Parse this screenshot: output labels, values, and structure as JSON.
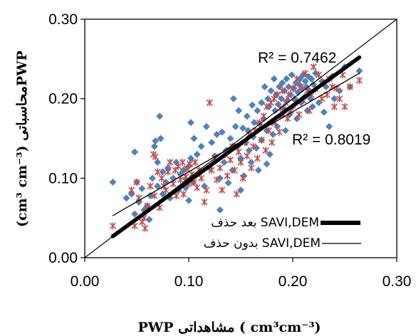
{
  "chart_data": {
    "type": "scatter",
    "xlim": [
      0.0,
      0.3
    ],
    "ylim": [
      0.0,
      0.3
    ],
    "x_ticks": [
      "0.00",
      "0.10",
      "0.20",
      "0.30"
    ],
    "y_ticks": [
      "0.00",
      "0.10",
      "0.20",
      "0.30"
    ],
    "xlabel": "PWP مشاهداتی ( cm³cm⁻³)",
    "ylabel": "(cm³ cm⁻³)  محاسباتیPWP",
    "grid": false,
    "legend_position": "bottom-right",
    "one_to_one_line": true,
    "annotations": [
      {
        "text": "R² = 0.7462",
        "x": 0.212,
        "y": 0.252
      },
      {
        "text": "R² = 0.8019",
        "x": 0.208,
        "y": 0.151
      }
    ],
    "series": [
      {
        "marker": "diamond",
        "color": "#4f81bd",
        "points": [
          [
            0.027,
            0.095
          ],
          [
            0.04,
            0.075
          ],
          [
            0.045,
            0.08
          ],
          [
            0.048,
            0.133
          ],
          [
            0.048,
            0.055
          ],
          [
            0.05,
            0.095
          ],
          [
            0.052,
            0.07
          ],
          [
            0.055,
            0.087
          ],
          [
            0.057,
            0.06
          ],
          [
            0.06,
            0.065
          ],
          [
            0.062,
            0.048
          ],
          [
            0.063,
            0.078
          ],
          [
            0.065,
            0.1
          ],
          [
            0.067,
            0.14
          ],
          [
            0.068,
            0.147
          ],
          [
            0.07,
            0.12
          ],
          [
            0.07,
            0.09
          ],
          [
            0.072,
            0.178
          ],
          [
            0.073,
            0.15
          ],
          [
            0.075,
            0.108
          ],
          [
            0.075,
            0.08
          ],
          [
            0.078,
            0.095
          ],
          [
            0.08,
            0.113
          ],
          [
            0.082,
            0.075
          ],
          [
            0.085,
            0.1
          ],
          [
            0.088,
            0.12
          ],
          [
            0.09,
            0.085
          ],
          [
            0.092,
            0.105
          ],
          [
            0.095,
            0.11
          ],
          [
            0.097,
            0.088
          ],
          [
            0.098,
            0.098
          ],
          [
            0.1,
            0.072
          ],
          [
            0.1,
            0.115
          ],
          [
            0.102,
            0.125
          ],
          [
            0.102,
            0.17
          ],
          [
            0.104,
            0.095
          ],
          [
            0.105,
            0.15
          ],
          [
            0.108,
            0.13
          ],
          [
            0.11,
            0.107
          ],
          [
            0.112,
            0.14
          ],
          [
            0.115,
            0.09
          ],
          [
            0.117,
            0.165
          ],
          [
            0.12,
            0.113
          ],
          [
            0.122,
            0.145
          ],
          [
            0.125,
            0.128
          ],
          [
            0.127,
            0.155
          ],
          [
            0.13,
            0.06
          ],
          [
            0.13,
            0.1
          ],
          [
            0.132,
            0.158
          ],
          [
            0.134,
            0.12
          ],
          [
            0.136,
            0.135
          ],
          [
            0.138,
            0.094
          ],
          [
            0.14,
            0.15
          ],
          [
            0.142,
            0.11
          ],
          [
            0.143,
            0.2
          ],
          [
            0.145,
            0.165
          ],
          [
            0.147,
            0.14
          ],
          [
            0.148,
            0.185
          ],
          [
            0.15,
            0.085
          ],
          [
            0.15,
            0.125
          ],
          [
            0.152,
            0.163
          ],
          [
            0.153,
            0.103
          ],
          [
            0.155,
            0.145
          ],
          [
            0.156,
            0.178
          ],
          [
            0.157,
            0.16
          ],
          [
            0.158,
            0.135
          ],
          [
            0.16,
            0.12
          ],
          [
            0.161,
            0.192
          ],
          [
            0.162,
            0.152
          ],
          [
            0.163,
            0.17
          ],
          [
            0.165,
            0.138
          ],
          [
            0.166,
            0.185
          ],
          [
            0.167,
            0.11
          ],
          [
            0.168,
            0.168
          ],
          [
            0.17,
            0.148
          ],
          [
            0.17,
            0.195
          ],
          [
            0.172,
            0.175
          ],
          [
            0.173,
            0.215
          ],
          [
            0.175,
            0.16
          ],
          [
            0.175,
            0.118
          ],
          [
            0.176,
            0.2
          ],
          [
            0.177,
            0.19
          ],
          [
            0.178,
            0.13
          ],
          [
            0.179,
            0.21
          ],
          [
            0.18,
            0.17
          ],
          [
            0.181,
            0.155
          ],
          [
            0.182,
            0.225
          ],
          [
            0.183,
            0.185
          ],
          [
            0.184,
            0.205
          ],
          [
            0.185,
            0.165
          ],
          [
            0.186,
            0.193
          ],
          [
            0.187,
            0.215
          ],
          [
            0.188,
            0.178
          ],
          [
            0.189,
            0.2
          ],
          [
            0.19,
            0.22
          ],
          [
            0.191,
            0.188
          ],
          [
            0.192,
            0.21
          ],
          [
            0.193,
            0.16
          ],
          [
            0.194,
            0.225
          ],
          [
            0.195,
            0.198
          ],
          [
            0.196,
            0.215
          ],
          [
            0.197,
            0.18
          ],
          [
            0.198,
            0.205
          ],
          [
            0.199,
            0.23
          ],
          [
            0.2,
            0.19
          ],
          [
            0.201,
            0.213
          ],
          [
            0.202,
            0.2
          ],
          [
            0.203,
            0.22
          ],
          [
            0.204,
            0.175
          ],
          [
            0.205,
            0.208
          ],
          [
            0.206,
            0.218
          ],
          [
            0.207,
            0.225
          ],
          [
            0.208,
            0.195
          ],
          [
            0.209,
            0.212
          ],
          [
            0.21,
            0.23
          ],
          [
            0.211,
            0.202
          ],
          [
            0.212,
            0.222
          ],
          [
            0.213,
            0.215
          ],
          [
            0.214,
            0.185
          ],
          [
            0.215,
            0.228
          ],
          [
            0.216,
            0.21
          ],
          [
            0.217,
            0.2
          ],
          [
            0.218,
            0.225
          ],
          [
            0.219,
            0.19
          ],
          [
            0.22,
            0.218
          ],
          [
            0.222,
            0.232
          ],
          [
            0.225,
            0.195
          ],
          [
            0.228,
            0.222
          ],
          [
            0.23,
            0.183
          ],
          [
            0.232,
            0.215
          ],
          [
            0.235,
            0.165
          ],
          [
            0.238,
            0.228
          ],
          [
            0.24,
            0.2
          ],
          [
            0.245,
            0.21
          ],
          [
            0.25,
            0.24
          ],
          [
            0.255,
            0.215
          ],
          [
            0.264,
            0.235
          ]
        ]
      },
      {
        "marker": "asterisk",
        "color": "#c0504d",
        "points": [
          [
            0.027,
            0.04
          ],
          [
            0.045,
            0.085
          ],
          [
            0.048,
            0.04
          ],
          [
            0.05,
            0.095
          ],
          [
            0.052,
            0.075
          ],
          [
            0.055,
            0.045
          ],
          [
            0.057,
            0.05
          ],
          [
            0.058,
            0.037
          ],
          [
            0.06,
            0.065
          ],
          [
            0.063,
            0.09
          ],
          [
            0.066,
            0.13
          ],
          [
            0.067,
            0.078
          ],
          [
            0.068,
            0.127
          ],
          [
            0.07,
            0.108
          ],
          [
            0.072,
            0.063
          ],
          [
            0.074,
            0.1
          ],
          [
            0.076,
            0.09
          ],
          [
            0.078,
            0.085
          ],
          [
            0.08,
            0.108
          ],
          [
            0.082,
            0.12
          ],
          [
            0.085,
            0.093
          ],
          [
            0.087,
            0.11
          ],
          [
            0.088,
            0.078
          ],
          [
            0.09,
            0.115
          ],
          [
            0.092,
            0.098
          ],
          [
            0.094,
            0.12
          ],
          [
            0.095,
            0.08
          ],
          [
            0.097,
            0.102
          ],
          [
            0.098,
            0.112
          ],
          [
            0.1,
            0.093
          ],
          [
            0.101,
            0.118
          ],
          [
            0.103,
            0.105
          ],
          [
            0.105,
            0.095
          ],
          [
            0.106,
            0.12
          ],
          [
            0.108,
            0.088
          ],
          [
            0.11,
            0.11
          ],
          [
            0.112,
            0.1
          ],
          [
            0.115,
            0.07
          ],
          [
            0.117,
            0.085
          ],
          [
            0.12,
            0.195
          ],
          [
            0.122,
            0.11
          ],
          [
            0.125,
            0.125
          ],
          [
            0.127,
            0.098
          ],
          [
            0.13,
            0.113
          ],
          [
            0.132,
            0.085
          ],
          [
            0.135,
            0.13
          ],
          [
            0.137,
            0.103
          ],
          [
            0.14,
            0.123
          ],
          [
            0.142,
            0.14
          ],
          [
            0.144,
            0.11
          ],
          [
            0.146,
            0.08
          ],
          [
            0.148,
            0.133
          ],
          [
            0.15,
            0.12
          ],
          [
            0.152,
            0.1
          ],
          [
            0.154,
            0.145
          ],
          [
            0.156,
            0.128
          ],
          [
            0.158,
            0.155
          ],
          [
            0.16,
            0.113
          ],
          [
            0.162,
            0.14
          ],
          [
            0.164,
            0.16
          ],
          [
            0.166,
            0.125
          ],
          [
            0.168,
            0.17
          ],
          [
            0.17,
            0.148
          ],
          [
            0.172,
            0.178
          ],
          [
            0.174,
            0.135
          ],
          [
            0.175,
            0.19
          ],
          [
            0.177,
            0.16
          ],
          [
            0.179,
            0.195
          ],
          [
            0.18,
            0.145
          ],
          [
            0.182,
            0.2
          ],
          [
            0.183,
            0.17
          ],
          [
            0.185,
            0.205
          ],
          [
            0.187,
            0.158
          ],
          [
            0.188,
            0.188
          ],
          [
            0.19,
            0.21
          ],
          [
            0.191,
            0.18
          ],
          [
            0.193,
            0.195
          ],
          [
            0.195,
            0.175
          ],
          [
            0.196,
            0.205
          ],
          [
            0.198,
            0.185
          ],
          [
            0.2,
            0.213
          ],
          [
            0.202,
            0.195
          ],
          [
            0.204,
            0.225
          ],
          [
            0.206,
            0.18
          ],
          [
            0.208,
            0.215
          ],
          [
            0.21,
            0.198
          ],
          [
            0.212,
            0.232
          ],
          [
            0.214,
            0.21
          ],
          [
            0.216,
            0.185
          ],
          [
            0.218,
            0.205
          ],
          [
            0.22,
            0.24
          ],
          [
            0.222,
            0.212
          ],
          [
            0.225,
            0.23
          ],
          [
            0.228,
            0.2
          ],
          [
            0.23,
            0.22
          ],
          [
            0.233,
            0.205
          ],
          [
            0.235,
            0.225
          ],
          [
            0.238,
            0.215
          ],
          [
            0.24,
            0.19
          ],
          [
            0.242,
            0.213
          ],
          [
            0.245,
            0.2
          ],
          [
            0.248,
            0.23
          ],
          [
            0.25,
            0.19
          ],
          [
            0.255,
            0.215
          ],
          [
            0.264,
            0.223
          ]
        ]
      }
    ],
    "trendlines": [
      {
        "name": "بعد حذف SAVI,DEM",
        "style": "thick",
        "x": [
          0.027,
          0.264
        ],
        "y": [
          0.027,
          0.252
        ]
      },
      {
        "name": "بدون حذف SAVI,DEM",
        "style": "thin",
        "x": [
          0.027,
          0.264
        ],
        "y": [
          0.053,
          0.232
        ]
      }
    ]
  }
}
